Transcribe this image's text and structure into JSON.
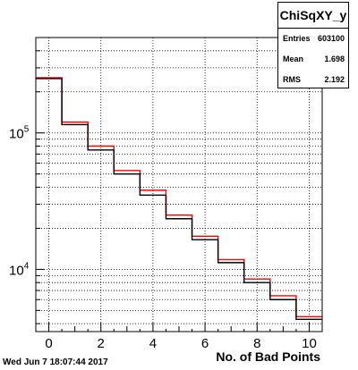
{
  "chart_data": {
    "type": "bar",
    "histtype": "step",
    "title": "ChiSqXY_y",
    "xlabel": "No. of Bad Points",
    "ylabel": "",
    "xlim": [
      -0.5,
      10.5
    ],
    "ylim": [
      3500,
      500000
    ],
    "yscale": "log",
    "grid": true,
    "bin_edges": [
      -0.5,
      0.5,
      1.5,
      2.5,
      3.5,
      4.5,
      5.5,
      6.5,
      7.5,
      8.5,
      9.5,
      10.5
    ],
    "x_ticks": [
      0,
      2,
      4,
      6,
      8,
      10
    ],
    "y_ticks": [
      {
        "value": 10000,
        "base": "10",
        "exp": "4"
      },
      {
        "value": 100000,
        "base": "10",
        "exp": "5"
      }
    ],
    "series": [
      {
        "color": "#000000",
        "values": [
          250000,
          115000,
          75000,
          50000,
          35000,
          23500,
          16500,
          11200,
          8000,
          6000,
          4300
        ]
      },
      {
        "color": "#ff0000",
        "values": [
          254000,
          120000,
          80000,
          53000,
          38000,
          25000,
          17500,
          11800,
          8500,
          6400,
          4500
        ]
      }
    ]
  },
  "stats": {
    "title": "ChiSqXY_y",
    "rows": [
      {
        "key": "Entries",
        "value": "603100"
      },
      {
        "key": "Mean",
        "value": "1.698"
      },
      {
        "key": "RMS",
        "value": "2.192"
      }
    ]
  },
  "footer": {
    "timestamp": "Wed Jun  7 18:07:44 2017"
  }
}
